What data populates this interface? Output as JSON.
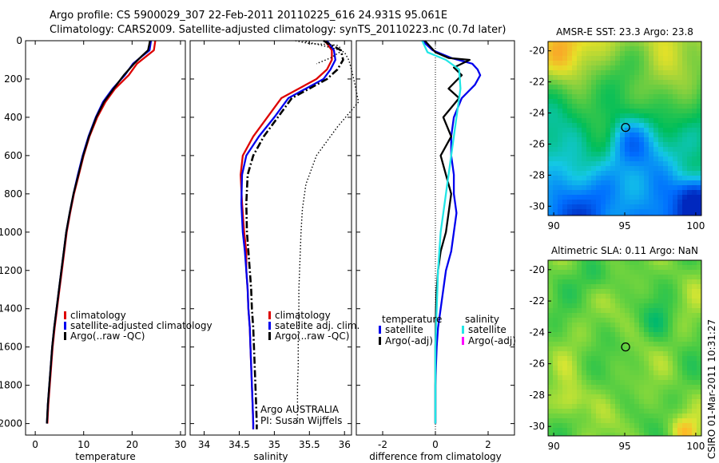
{
  "header": {
    "line1": "Argo profile: CS 5900029_307 22-Feb-2011 20110225_616 24.931S 95.061E",
    "line2": "Climatology: CARS2009. Satellite-adjusted climatology: synTS_20110223.nc (0.7d later)"
  },
  "credit": "CSIRO 01-Mar-2011 10:31:27",
  "colors": {
    "climatology": "#dd0000",
    "satellite": "#0000ee",
    "argo": "#000000",
    "sat_salinity": "#22e6e6",
    "argo_adj_salinity": "#ff00ff"
  },
  "chart_data": [
    {
      "type": "line",
      "xlabel": "temperature",
      "xlim": [
        -2,
        31
      ],
      "ylim": [
        0,
        2060
      ],
      "xticks": [
        0,
        10,
        20,
        30
      ],
      "yticks": [
        0,
        200,
        400,
        600,
        800,
        1000,
        1200,
        1400,
        1600,
        1800,
        2000
      ],
      "legend": [
        "climatology",
        "satellite-adjusted climatology",
        "Argo(..raw -QC)"
      ],
      "series": [
        {
          "name": "climatology",
          "style": "solid",
          "x": [
            24.8,
            24.5,
            23,
            21,
            19.3,
            16.5,
            14.5,
            12.8,
            11.2,
            10,
            9,
            8,
            7.2,
            6.5,
            6,
            5.5,
            5,
            4.5,
            4,
            3.6,
            3.3,
            3,
            2.7,
            2.5
          ],
          "y": [
            0,
            50,
            80,
            120,
            180,
            250,
            320,
            400,
            500,
            600,
            700,
            800,
            900,
            1000,
            1100,
            1200,
            1300,
            1400,
            1500,
            1600,
            1700,
            1800,
            1900,
            2000
          ]
        },
        {
          "name": "satellite-adjusted climatology",
          "style": "solid",
          "x": [
            23.9,
            23.6,
            22.1,
            20.2,
            18.5,
            16,
            14,
            12.5,
            11,
            9.8,
            8.8,
            7.9,
            7.1,
            6.4,
            5.9,
            5.4,
            4.9,
            4.4,
            3.9,
            3.5,
            3.2,
            2.9,
            2.6,
            2.4
          ],
          "y": [
            0,
            50,
            80,
            120,
            180,
            250,
            320,
            400,
            500,
            600,
            700,
            800,
            900,
            1000,
            1100,
            1200,
            1300,
            1400,
            1500,
            1600,
            1700,
            1800,
            1900,
            2000
          ]
        },
        {
          "name": "Argo(..raw -QC)",
          "style": "solid",
          "x": [
            23.7,
            23.3,
            22,
            20.4,
            18.3,
            16.2,
            14.2,
            12.6,
            11.1,
            9.9,
            8.9,
            7.9,
            7.1,
            6.4,
            5.9,
            5.4,
            4.9,
            4.4,
            3.9,
            3.5,
            3.2,
            2.9,
            2.6,
            2.4
          ],
          "y": [
            0,
            50,
            80,
            120,
            180,
            250,
            320,
            400,
            500,
            600,
            700,
            800,
            900,
            1000,
            1100,
            1200,
            1300,
            1400,
            1500,
            1600,
            1700,
            1800,
            1900,
            2000
          ]
        }
      ]
    },
    {
      "type": "line",
      "xlabel": "salinity",
      "xlim": [
        33.8,
        36.1
      ],
      "ylim": [
        0,
        2060
      ],
      "xticks": [
        34,
        34.5,
        35,
        35.5,
        36
      ],
      "legend": [
        "climatology",
        "satellite adj. clim.",
        "Argo(..raw -QC)"
      ],
      "annotation": [
        "Argo AUSTRALIA",
        "PI: Susan Wijffels"
      ],
      "series": [
        {
          "name": "climatology",
          "style": "solid",
          "x": [
            35.72,
            35.82,
            35.82,
            35.75,
            35.6,
            35.35,
            35.1,
            34.9,
            34.7,
            34.55,
            34.52,
            34.54,
            34.57,
            34.6,
            34.6,
            34.62,
            34.63,
            34.65,
            34.66,
            34.67,
            34.68,
            34.69,
            34.7,
            34.7
          ],
          "y": [
            0,
            50,
            100,
            150,
            200,
            250,
            300,
            400,
            500,
            600,
            700,
            850,
            1000,
            1100,
            1200,
            1300,
            1400,
            1500,
            1600,
            1700,
            1800,
            1900,
            2000,
            2030
          ]
        },
        {
          "name": "satellite adj. clim.",
          "style": "solid",
          "x": [
            35.75,
            35.85,
            35.87,
            35.8,
            35.7,
            35.45,
            35.2,
            35,
            34.78,
            34.6,
            34.54,
            34.53,
            34.55,
            34.58,
            34.6,
            34.62,
            34.63,
            34.65,
            34.66,
            34.67,
            34.68,
            34.69,
            34.7,
            34.7
          ],
          "y": [
            0,
            50,
            100,
            150,
            200,
            250,
            300,
            400,
            500,
            600,
            700,
            850,
            1000,
            1100,
            1200,
            1300,
            1400,
            1500,
            1600,
            1700,
            1800,
            1900,
            2000,
            2030
          ]
        },
        {
          "name": "Argo(..raw -QC)",
          "style": "dashdot",
          "x": [
            35.7,
            35.95,
            35.98,
            35.9,
            35.75,
            35.5,
            35.25,
            35.05,
            34.85,
            34.7,
            34.62,
            34.6,
            34.61,
            34.63,
            34.65,
            34.67,
            34.68,
            34.7,
            34.71,
            34.72,
            34.73,
            34.74,
            34.75,
            34.75
          ],
          "y": [
            0,
            50,
            100,
            150,
            200,
            250,
            300,
            400,
            500,
            600,
            700,
            850,
            1000,
            1100,
            1200,
            1300,
            1400,
            1500,
            1600,
            1700,
            1800,
            1900,
            2000,
            2030
          ]
        },
        {
          "name": "",
          "style": "dotted",
          "x": [
            35.4,
            35.85,
            36.0,
            36.06,
            36.1,
            36.15,
            36.2,
            35.9,
            35.6,
            35.45,
            35.4,
            35.38,
            35.37,
            35.36,
            35.35,
            35.35,
            35.34,
            35.34,
            35.34,
            35.33,
            35.33,
            35.33
          ],
          "y": [
            0,
            40,
            60,
            100,
            150,
            230,
            320,
            450,
            600,
            750,
            880,
            1000,
            1100,
            1200,
            1300,
            1400,
            1500,
            1600,
            1700,
            1800,
            1900,
            2000
          ]
        },
        {
          "name": "",
          "style": "dotted",
          "x": [
            35.3,
            35.5,
            35.8,
            35.9,
            35.95,
            35.93,
            35.8,
            35.6
          ],
          "y": [
            0,
            15,
            20,
            25,
            40,
            60,
            90,
            120
          ]
        }
      ]
    },
    {
      "type": "line",
      "xlabel": "difference from climatology",
      "xlim": [
        -3,
        3
      ],
      "ylim": [
        0,
        2060
      ],
      "xticks": [
        -2,
        0,
        2
      ],
      "legend_groups": [
        {
          "title": "temperature",
          "entries": [
            "satellite",
            "Argo(-adj)"
          ]
        },
        {
          "title": "salinity",
          "entries": [
            "satellite",
            "Argo(-adj)"
          ]
        }
      ],
      "series": [
        {
          "name": "satellite",
          "group": "temperature",
          "x": [
            -0.5,
            -0.1,
            0.6,
            1.4,
            1.6,
            1.7,
            1.5,
            1.0,
            0.7,
            0.6,
            0.6,
            0.7,
            0.7,
            0.8,
            0.7,
            0.6,
            0.4,
            0.3,
            0.2,
            0.1,
            0.05,
            0.02,
            0.0,
            0.0
          ],
          "y": [
            0,
            50,
            90,
            120,
            150,
            180,
            230,
            300,
            400,
            500,
            600,
            700,
            800,
            900,
            1000,
            1100,
            1200,
            1300,
            1400,
            1500,
            1600,
            1700,
            1800,
            2000
          ]
        },
        {
          "name": "Argo(-adj)",
          "group": "temperature",
          "x": [
            -0.4,
            0,
            0.5,
            1.3,
            0.7,
            1.0,
            0.5,
            0.9,
            0.3,
            0.6,
            0.2,
            0.4,
            0.6,
            0.5,
            0.4,
            0.2,
            0.1,
            0.05,
            0.02,
            0.0,
            0.0
          ],
          "y": [
            0,
            60,
            90,
            100,
            140,
            180,
            250,
            300,
            400,
            500,
            600,
            700,
            800,
            900,
            1000,
            1100,
            1200,
            1300,
            1400,
            1600,
            2000
          ]
        },
        {
          "name": "satellite",
          "group": "salinity",
          "x": [
            -0.5,
            -0.3,
            0.4,
            0.9,
            0.95,
            0.8,
            0.6,
            0.4,
            0.2,
            0.1,
            0.0,
            0.0
          ],
          "y": [
            0,
            60,
            100,
            150,
            250,
            400,
            600,
            800,
            1000,
            1200,
            1600,
            2000
          ]
        }
      ]
    }
  ],
  "maps": [
    {
      "title": "AMSR-E SST: 23.3 Argo: 23.8",
      "xticks": [
        90,
        95,
        100
      ],
      "yticks": [
        -20,
        -22,
        -24,
        -26,
        -28,
        -30
      ],
      "xlim": [
        89.6,
        100.4
      ],
      "ylim": [
        -30.6,
        -19.4
      ],
      "marker": [
        95.06,
        -24.93
      ]
    },
    {
      "title": "Altimetric SLA: 0.11 Argo: NaN",
      "xticks": [
        90,
        95,
        100
      ],
      "yticks": [
        -20,
        -22,
        -24,
        -26,
        -28,
        -30
      ],
      "xlim": [
        89.6,
        100.4
      ],
      "ylim": [
        -30.6,
        -19.4
      ],
      "marker": [
        95.06,
        -24.93
      ]
    }
  ]
}
